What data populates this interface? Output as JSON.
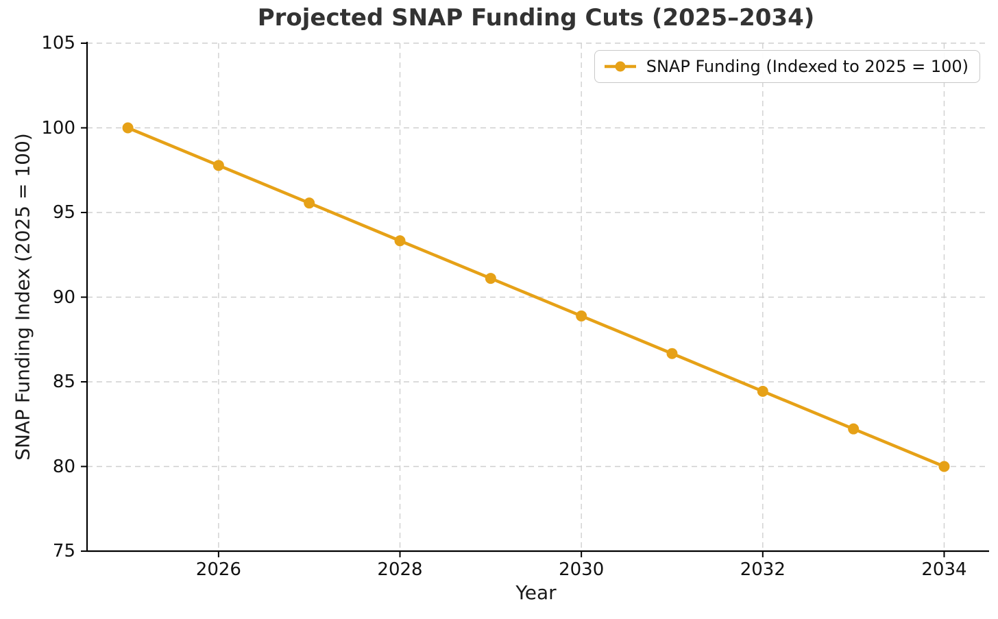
{
  "title": "Projected SNAP Funding Cuts (2025–2034)",
  "chart_data": {
    "type": "line",
    "title": "Projected SNAP Funding Cuts (2025–2034)",
    "xlabel": "Year",
    "ylabel": "SNAP Funding Index (2025 = 100)",
    "x": [
      2025,
      2026,
      2027,
      2028,
      2029,
      2030,
      2031,
      2032,
      2033,
      2034
    ],
    "series": [
      {
        "name": "SNAP Funding (Indexed to 2025 = 100)",
        "values": [
          100,
          97.78,
          95.56,
          93.33,
          91.11,
          88.89,
          86.67,
          84.44,
          82.22,
          80
        ]
      }
    ],
    "xticks": [
      2026,
      2028,
      2030,
      2032,
      2034
    ],
    "yticks": [
      75,
      80,
      85,
      90,
      95,
      100,
      105
    ],
    "xlim": [
      2024.55,
      2034.45
    ],
    "ylim": [
      75,
      105
    ],
    "grid": true,
    "grid_style": "dashed",
    "legend_position": "upper right",
    "marker": "circle",
    "colors": {
      "line": "#E6A117",
      "grid": "#cfcfcf",
      "spine": "#000000",
      "title": "#333333",
      "tick_text": "#111111",
      "legend_border": "#c8c8c8",
      "background": "#ffffff"
    }
  }
}
